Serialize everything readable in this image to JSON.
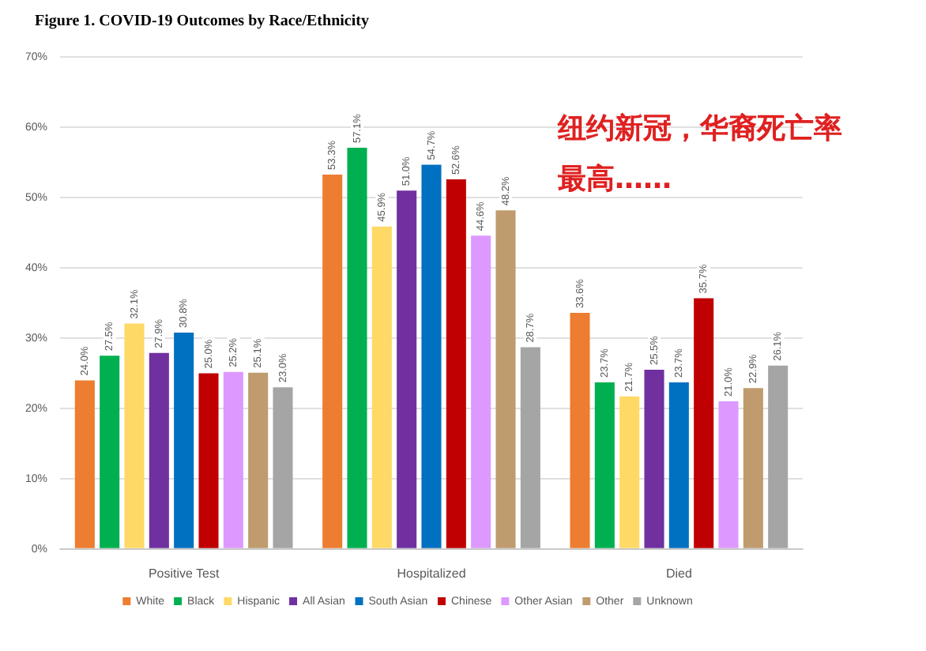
{
  "chart_data": {
    "type": "bar",
    "title": "Figure 1. COVID-19 Outcomes by Race/Ethnicity",
    "annotations": [
      "纽约新冠，华裔死亡率最高……"
    ],
    "categories": [
      "Positive Test",
      "Hospitalized",
      "Died"
    ],
    "series": [
      {
        "name": "White",
        "color": "#ed7d31",
        "values": [
          24.0,
          53.3,
          33.6
        ],
        "value_labels": [
          "24.0%",
          "53.3%",
          "33.6%"
        ]
      },
      {
        "name": "Black",
        "color": "#00b050",
        "values": [
          27.5,
          57.1,
          23.7
        ],
        "value_labels": [
          "27.5%",
          "57.1%",
          "23.7%"
        ]
      },
      {
        "name": "Hispanic",
        "color": "#ffd966",
        "values": [
          32.1,
          45.9,
          21.7
        ],
        "value_labels": [
          "32.1%",
          "45.9%",
          "21.7%"
        ]
      },
      {
        "name": "All Asian",
        "color": "#7030a0",
        "values": [
          27.9,
          51.0,
          25.5
        ],
        "value_labels": [
          "27.9%",
          "51.0%",
          "25.5%"
        ]
      },
      {
        "name": "South Asian",
        "color": "#0070c0",
        "values": [
          30.8,
          54.7,
          23.7
        ],
        "value_labels": [
          "30.8%",
          "54.7%",
          "23.7%"
        ]
      },
      {
        "name": "Chinese",
        "color": "#c00000",
        "values": [
          25.0,
          52.6,
          35.7
        ],
        "value_labels": [
          "25.0%",
          "52.6%",
          "35.7%"
        ]
      },
      {
        "name": "Other Asian",
        "color": "#dd99ff",
        "values": [
          25.2,
          44.6,
          21.0
        ],
        "value_labels": [
          "25.2%",
          "44.6%",
          "21.0%"
        ]
      },
      {
        "name": "Other",
        "color": "#bf9b6e",
        "values": [
          25.1,
          48.2,
          22.9
        ],
        "value_labels": [
          "25.1%",
          "48.2%",
          "22.9%"
        ]
      },
      {
        "name": "Unknown",
        "color": "#a5a5a5",
        "values": [
          23.0,
          28.7,
          26.1
        ],
        "value_labels": [
          "23.0%",
          "28.7%",
          "26.1%"
        ]
      }
    ],
    "ylim": [
      0,
      70
    ],
    "yticks": [
      {
        "value": 0,
        "label": "0%"
      },
      {
        "value": 10,
        "label": "10%"
      },
      {
        "value": 20,
        "label": "20%"
      },
      {
        "value": 30,
        "label": "30%"
      },
      {
        "value": 40,
        "label": "40%"
      },
      {
        "value": 50,
        "label": "50%"
      },
      {
        "value": 60,
        "label": "60%"
      },
      {
        "value": 70,
        "label": "70%"
      }
    ],
    "grid": "y",
    "legend": "bottom"
  }
}
